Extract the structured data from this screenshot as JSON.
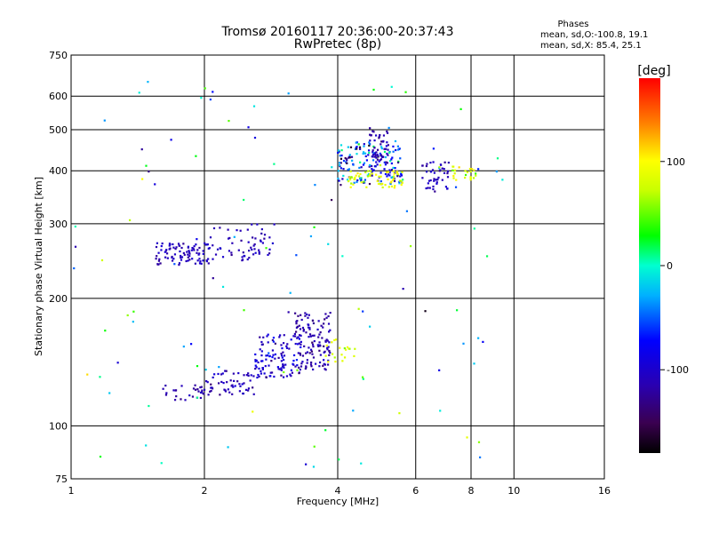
{
  "chart_data": {
    "type": "scatter",
    "title": "Tromsø 20160117 20:36:00-20:37:43",
    "subtitle": "RwPretec (8p)",
    "xlabel": "Frequency [MHz]",
    "ylabel": "Stationary phase Virtual Height [km]",
    "xscale": "log2",
    "yscale": "log",
    "xlim": [
      1,
      16
    ],
    "ylim": [
      75,
      750
    ],
    "x_ticks": [
      1,
      2,
      4,
      6,
      8,
      10,
      16
    ],
    "x_tick_labels": [
      "1",
      "2",
      "4",
      "6",
      "8",
      "10",
      "16"
    ],
    "y_ticks": [
      75,
      100,
      200,
      300,
      400,
      500,
      600,
      750
    ],
    "y_tick_labels": [
      "75",
      "100",
      "200",
      "300",
      "400",
      "500",
      "600",
      "750"
    ],
    "grid": true,
    "legend": {
      "heading": "Phases",
      "lines": [
        "mean, sd,O:-100.8, 19.1",
        "mean, sd,X:  85.4, 25.1"
      ],
      "placement": "top-right"
    },
    "colorbar": {
      "label": "[deg]",
      "min": -180,
      "max": 180,
      "ticks": [
        100,
        0,
        -100
      ],
      "tick_labels": [
        "100",
        "0",
        "-100"
      ]
    },
    "clusters": [
      {
        "x_range": [
          1.55,
          2.05
        ],
        "y_range": [
          240,
          270
        ],
        "n": 90,
        "phase_mean": -110,
        "phase_sd": 15
      },
      {
        "x_range": [
          2.05,
          2.9
        ],
        "y_range": [
          245,
          300
        ],
        "n": 60,
        "phase_mean": -110,
        "phase_sd": 15
      },
      {
        "x_range": [
          1.6,
          2.0
        ],
        "y_range": [
          115,
          125
        ],
        "n": 30,
        "phase_mean": -115,
        "phase_sd": 12
      },
      {
        "x_range": [
          2.0,
          2.6
        ],
        "y_range": [
          118,
          135
        ],
        "n": 55,
        "phase_mean": -110,
        "phase_sd": 20
      },
      {
        "x_range": [
          2.6,
          3.3
        ],
        "y_range": [
          130,
          165
        ],
        "n": 110,
        "phase_mean": -100,
        "phase_sd": 30
      },
      {
        "x_range": [
          3.2,
          3.85
        ],
        "y_range": [
          135,
          185
        ],
        "n": 120,
        "phase_mean": -115,
        "phase_sd": 20
      },
      {
        "x_range": [
          3.7,
          4.4
        ],
        "y_range": [
          140,
          160
        ],
        "n": 20,
        "phase_mean": 80,
        "phase_sd": 25
      },
      {
        "x_range": [
          4.0,
          5.6
        ],
        "y_range": [
          370,
          470
        ],
        "n": 170,
        "phase_mean": -60,
        "phase_sd": 80
      },
      {
        "x_range": [
          4.2,
          5.6
        ],
        "y_range": [
          365,
          400
        ],
        "n": 60,
        "phase_mean": 85,
        "phase_sd": 25
      },
      {
        "x_range": [
          4.7,
          5.2
        ],
        "y_range": [
          410,
          505
        ],
        "n": 50,
        "phase_mean": -115,
        "phase_sd": 15
      },
      {
        "x_range": [
          6.2,
          7.2
        ],
        "y_range": [
          355,
          420
        ],
        "n": 45,
        "phase_mean": -110,
        "phase_sd": 15
      },
      {
        "x_range": [
          7.2,
          8.2
        ],
        "y_range": [
          380,
          410
        ],
        "n": 25,
        "phase_mean": 80,
        "phase_sd": 30
      },
      {
        "x_range": [
          1.0,
          9.5
        ],
        "y_range": [
          80,
          650
        ],
        "n": 110,
        "phase_mean": 0,
        "phase_sd": 110
      }
    ]
  }
}
